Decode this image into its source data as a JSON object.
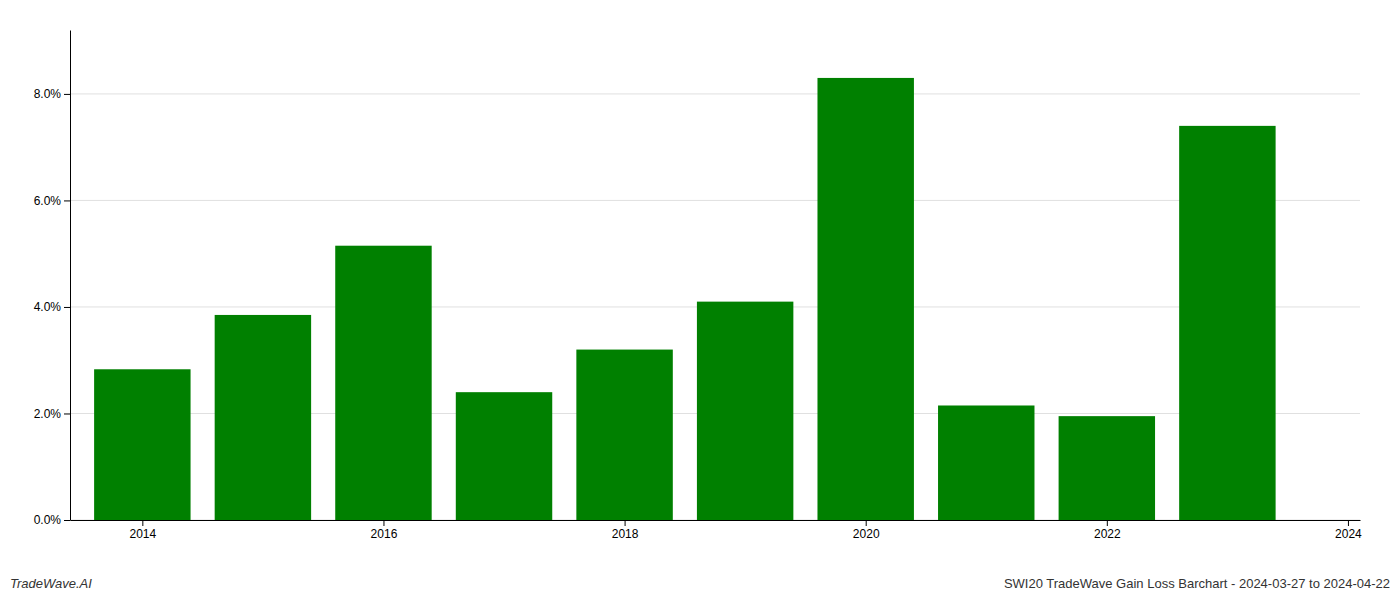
{
  "chart_data": {
    "type": "bar",
    "x": [
      2014,
      2015,
      2016,
      2017,
      2018,
      2019,
      2020,
      2021,
      2022,
      2023
    ],
    "values": [
      0.0283,
      0.0385,
      0.0515,
      0.024,
      0.032,
      0.041,
      0.083,
      0.0215,
      0.0195,
      0.074
    ],
    "color": "#008000",
    "xlim": [
      2013.4,
      2024.1
    ],
    "xticks": [
      2014,
      2016,
      2018,
      2020,
      2022,
      2024
    ],
    "ylim": [
      0,
      0.092
    ],
    "yticks": [
      {
        "value": 0.0,
        "label": "0.0%"
      },
      {
        "value": 0.02,
        "label": "2.0%"
      },
      {
        "value": 0.04,
        "label": "4.0%"
      },
      {
        "value": 0.06,
        "label": "6.0%"
      },
      {
        "value": 0.08,
        "label": "8.0%"
      }
    ],
    "grid": true,
    "annotations": [
      "TradeWave.AI",
      "SWI20 TradeWave Gain Loss Barchart - 2024-03-27 to 2024-04-22"
    ]
  }
}
